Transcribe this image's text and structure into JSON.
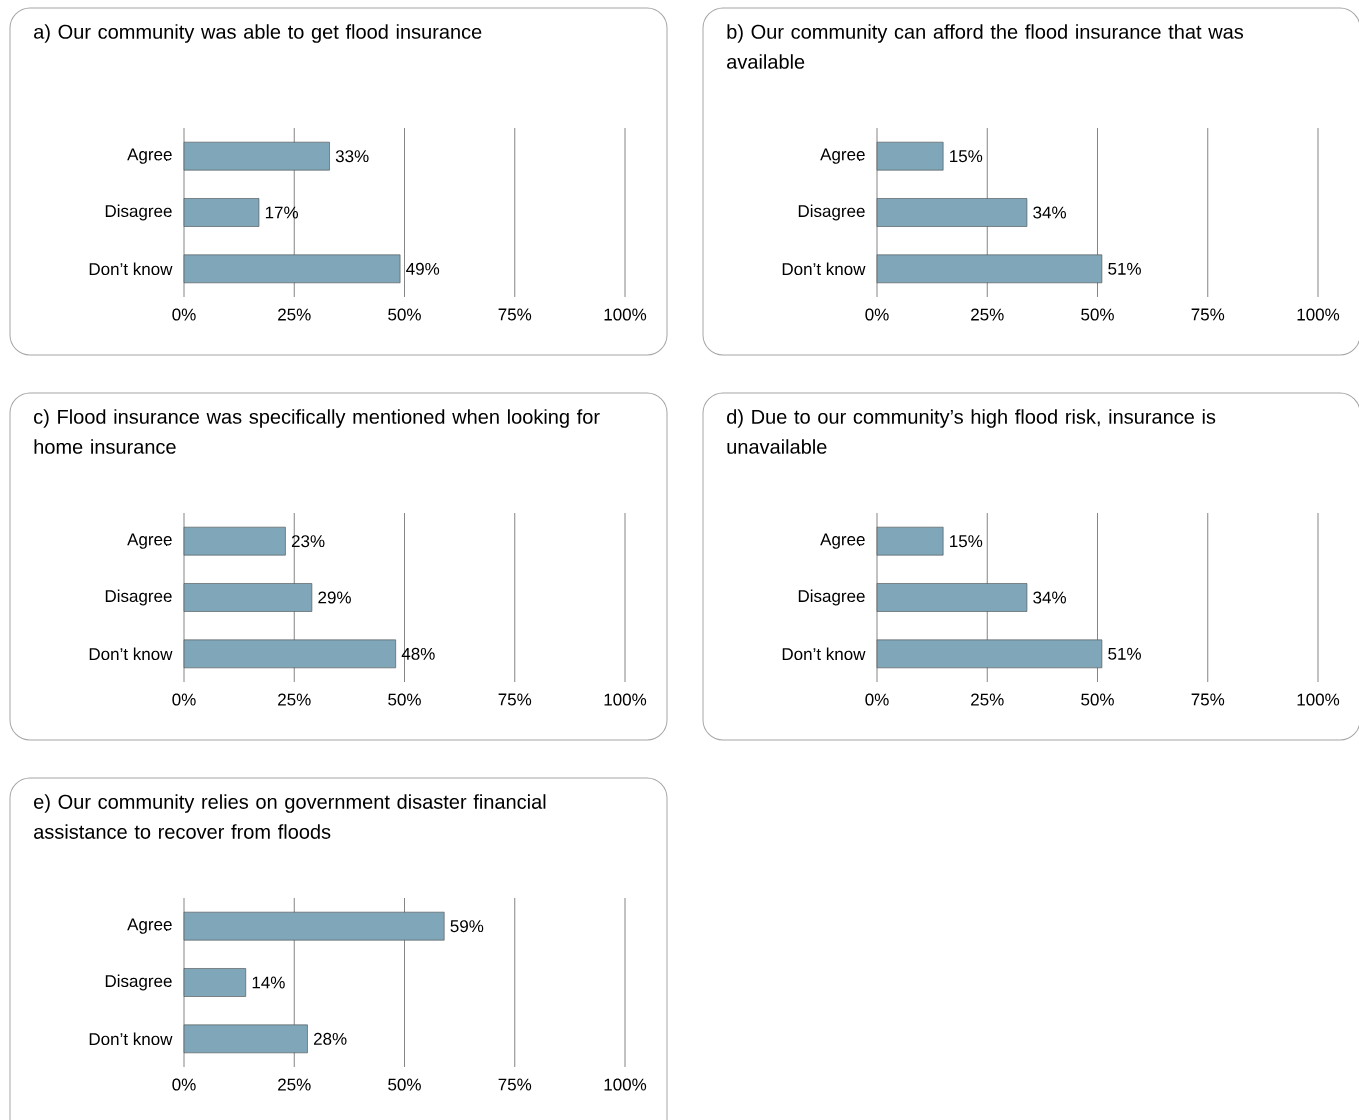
{
  "chart_data": [
    {
      "type": "bar",
      "orientation": "horizontal",
      "title": "a) Our community was able to get flood insurance",
      "categories": [
        "Agree",
        "Disagree",
        "Don’t know"
      ],
      "values": [
        33,
        17,
        49
      ],
      "value_labels": [
        "33%",
        "17%",
        "49%"
      ],
      "color": "#7fa7b9",
      "xlim": [
        0,
        100
      ],
      "xticks": [
        {
          "value": 0,
          "label": "0%"
        },
        {
          "value": 25,
          "label": "25%"
        },
        {
          "value": 50,
          "label": "50%"
        },
        {
          "value": 75,
          "label": "75%"
        },
        {
          "value": 100,
          "label": "100%"
        }
      ],
      "grid": "x"
    },
    {
      "type": "bar",
      "orientation": "horizontal",
      "title": "b) Our community can afford the flood insurance that was available",
      "categories": [
        "Agree",
        "Disagree",
        "Don’t know"
      ],
      "values": [
        15,
        34,
        51
      ],
      "value_labels": [
        "15%",
        "34%",
        "51%"
      ],
      "color": "#7fa7b9",
      "xlim": [
        0,
        100
      ],
      "xticks": [
        {
          "value": 0,
          "label": "0%"
        },
        {
          "value": 25,
          "label": "25%"
        },
        {
          "value": 50,
          "label": "50%"
        },
        {
          "value": 75,
          "label": "75%"
        },
        {
          "value": 100,
          "label": "100%"
        }
      ],
      "grid": "x"
    },
    {
      "type": "bar",
      "orientation": "horizontal",
      "title": "c) Flood insurance was specifically mentioned when looking for home insurance",
      "categories": [
        "Agree",
        "Disagree",
        "Don’t know"
      ],
      "values": [
        23,
        29,
        48
      ],
      "value_labels": [
        "23%",
        "29%",
        "48%"
      ],
      "color": "#7fa7b9",
      "xlim": [
        0,
        100
      ],
      "xticks": [
        {
          "value": 0,
          "label": "0%"
        },
        {
          "value": 25,
          "label": "25%"
        },
        {
          "value": 50,
          "label": "50%"
        },
        {
          "value": 75,
          "label": "75%"
        },
        {
          "value": 100,
          "label": "100%"
        }
      ],
      "grid": "x"
    },
    {
      "type": "bar",
      "orientation": "horizontal",
      "title": "d) Due to our community’s high flood risk, insurance is unavailable",
      "categories": [
        "Agree",
        "Disagree",
        "Don’t know"
      ],
      "values": [
        15,
        34,
        51
      ],
      "value_labels": [
        "15%",
        "34%",
        "51%"
      ],
      "color": "#7fa7b9",
      "xlim": [
        0,
        100
      ],
      "xticks": [
        {
          "value": 0,
          "label": "0%"
        },
        {
          "value": 25,
          "label": "25%"
        },
        {
          "value": 50,
          "label": "50%"
        },
        {
          "value": 75,
          "label": "75%"
        },
        {
          "value": 100,
          "label": "100%"
        }
      ],
      "grid": "x"
    },
    {
      "type": "bar",
      "orientation": "horizontal",
      "title": "e) Our community relies on government disaster financial assistance to recover from floods",
      "categories": [
        "Agree",
        "Disagree",
        "Don’t know"
      ],
      "values": [
        59,
        14,
        28
      ],
      "value_labels": [
        "59%",
        "14%",
        "28%"
      ],
      "color": "#7fa7b9",
      "xlim": [
        0,
        100
      ],
      "xticks": [
        {
          "value": 0,
          "label": "0%"
        },
        {
          "value": 25,
          "label": "25%"
        },
        {
          "value": 50,
          "label": "50%"
        },
        {
          "value": 75,
          "label": "75%"
        },
        {
          "value": 100,
          "label": "100%"
        }
      ],
      "grid": "x"
    }
  ]
}
